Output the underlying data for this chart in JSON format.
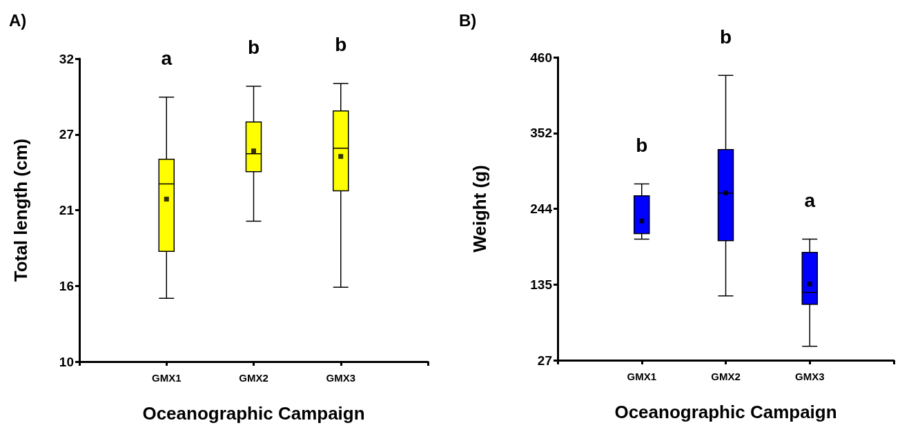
{
  "chart_data": [
    {
      "type": "box",
      "title": "A)",
      "xlabel": "Oceanographic Campaign",
      "ylabel": "Total length (cm)",
      "categories": [
        "GMX1",
        "GMX2",
        "GMX3"
      ],
      "color": "#ffff00",
      "marker": "square",
      "grid": false,
      "ylim": [
        10,
        32
      ],
      "yticks": [
        10,
        {
          "value": 15.5,
          "label": "16"
        },
        21,
        {
          "value": 26.5,
          "label": "27"
        },
        32
      ],
      "boxes": [
        {
          "low": 14.6,
          "q1": 18.0,
          "median": 22.9,
          "q3": 24.7,
          "high": 29.2,
          "mean": 21.8
        },
        {
          "low": 20.2,
          "q1": 23.8,
          "median": 25.1,
          "q3": 27.4,
          "high": 30.0,
          "mean": 25.3
        },
        {
          "low": 15.4,
          "q1": 22.4,
          "median": 25.5,
          "q3": 28.2,
          "high": 30.2,
          "mean": 24.9
        }
      ],
      "annotations": [
        "a",
        "b",
        "b"
      ]
    },
    {
      "type": "box",
      "title": "B)",
      "xlabel": "Oceanographic Campaign",
      "ylabel": "Weight (g)",
      "categories": [
        "GMX1",
        "GMX2",
        "GMX3"
      ],
      "color": "#0000ff",
      "marker": "square",
      "grid": false,
      "ylim": [
        27,
        460
      ],
      "yticks": [
        27,
        {
          "value": 135.25,
          "label": "135"
        },
        {
          "value": 243.5,
          "label": "244"
        },
        {
          "value": 351.75,
          "label": "352"
        },
        460
      ],
      "boxes": [
        {
          "low": 200,
          "q1": 208,
          "median": 208,
          "q3": 262,
          "high": 279,
          "mean": 226
        },
        {
          "low": 119,
          "q1": 198,
          "median": 266,
          "q3": 328,
          "high": 434,
          "mean": 266
        },
        {
          "low": 47,
          "q1": 107,
          "median": 124,
          "q3": 181,
          "high": 200,
          "mean": 136
        }
      ],
      "annotations": [
        "b",
        "b",
        "a"
      ]
    }
  ]
}
